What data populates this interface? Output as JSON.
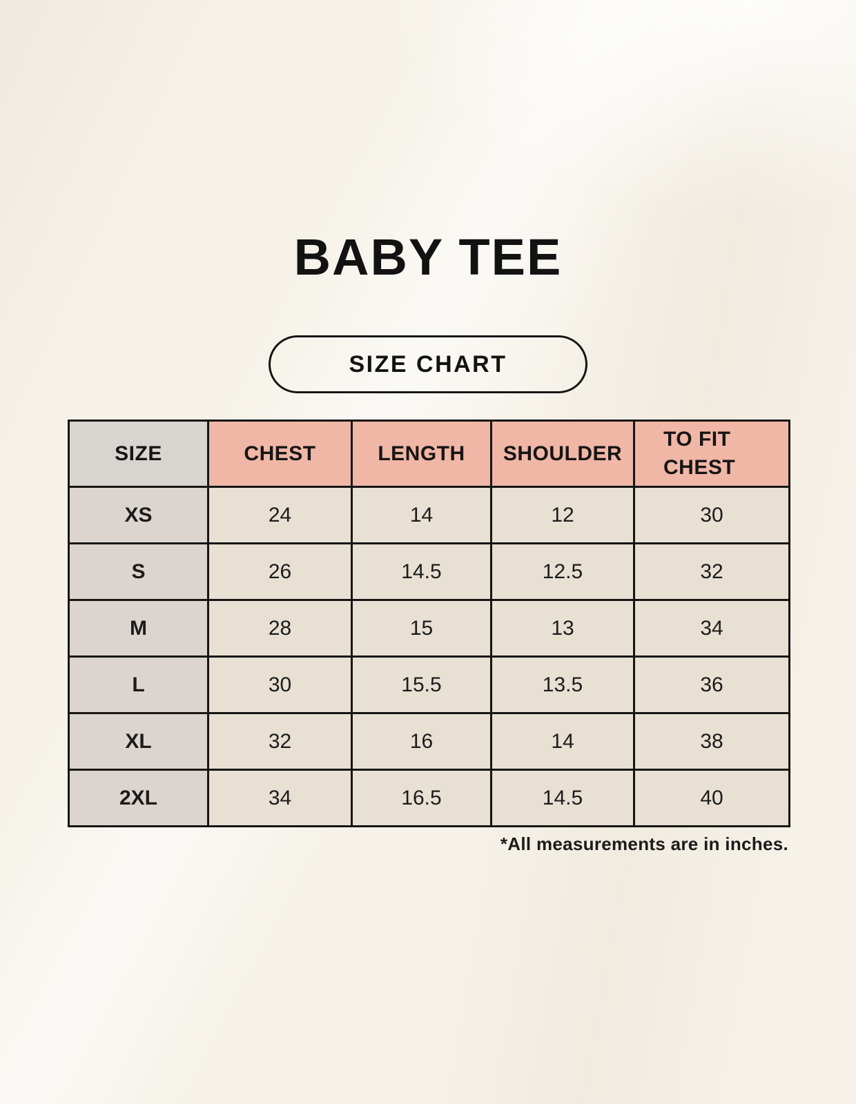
{
  "page": {
    "title": "BABY TEE",
    "button_label": "SIZE CHART",
    "footnote": "*All measurements are in inches."
  },
  "colors": {
    "background": "#f6f2e9",
    "header_pink": "#f0b6a6",
    "header_gray": "#d8d4d0",
    "row_label_gray": "#dcd5cf",
    "cell_beige": "#e7e0d3",
    "border_ink": "#161514"
  },
  "table": {
    "headers": [
      "SIZE",
      "CHEST",
      "LENGTH",
      "SHOULDER",
      "TO FIT CHEST"
    ],
    "rows": [
      {
        "cells": [
          "XS",
          "24",
          "14",
          "12",
          "30"
        ]
      },
      {
        "cells": [
          "S",
          "26",
          "14.5",
          "12.5",
          "32"
        ]
      },
      {
        "cells": [
          "M",
          "28",
          "15",
          "13",
          "34"
        ]
      },
      {
        "cells": [
          "L",
          "30",
          "15.5",
          "13.5",
          "36"
        ]
      },
      {
        "cells": [
          "XL",
          "32",
          "16",
          "14",
          "38"
        ]
      },
      {
        "cells": [
          "2XL",
          "34",
          "16.5",
          "14.5",
          "40"
        ]
      }
    ]
  },
  "chart_data": {
    "type": "table",
    "title": "BABY TEE",
    "subtitle": "SIZE CHART",
    "columns": [
      "SIZE",
      "CHEST",
      "LENGTH",
      "SHOULDER",
      "TO FIT CHEST"
    ],
    "rows": [
      [
        "XS",
        24,
        14,
        12,
        30
      ],
      [
        "S",
        26,
        14.5,
        12.5,
        32
      ],
      [
        "M",
        28,
        15,
        13,
        34
      ],
      [
        "L",
        30,
        15.5,
        13.5,
        36
      ],
      [
        "XL",
        32,
        16,
        14,
        38
      ],
      [
        "2XL",
        34,
        16.5,
        14.5,
        40
      ]
    ],
    "units": "inches",
    "footnote": "*All measurements are in inches."
  }
}
